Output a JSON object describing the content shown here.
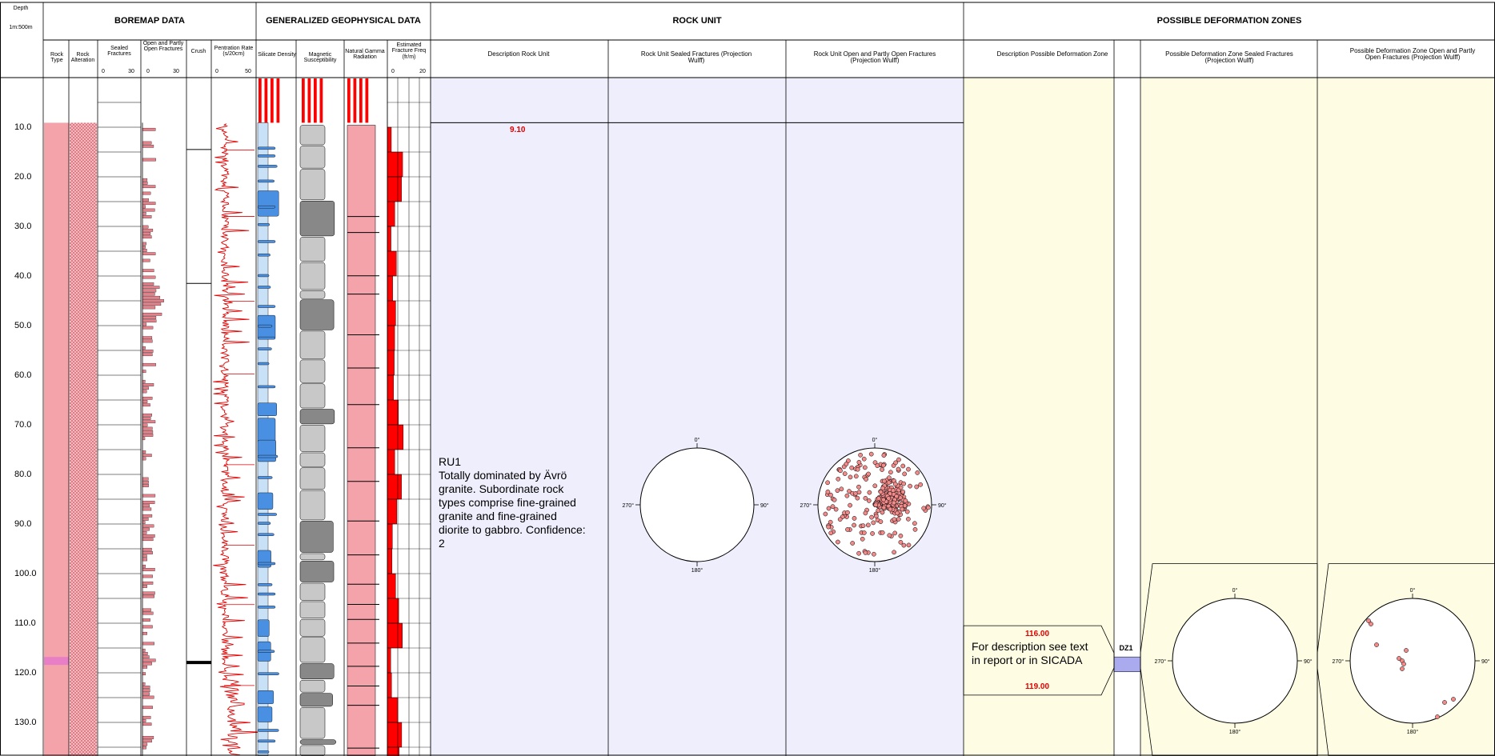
{
  "header": {
    "depth_label": "Depth",
    "scale_label": "1m:500m",
    "groups": {
      "boremap": "BOREMAP DATA",
      "geophysical": "GENERALIZED GEOPHYSICAL DATA",
      "rock_unit": "ROCK UNIT",
      "deformation": "POSSIBLE DEFORMATION ZONES"
    },
    "columns": {
      "rock_type": "Rock Type",
      "rock_alteration": "Rock Alteration",
      "sealed_fractures": "Sealed Fractures",
      "sealed_scale_min": "0",
      "sealed_scale_max": "30",
      "open_fractures": "Open and Partly Open Fractures",
      "open_scale_min": "0",
      "open_scale_max": "30",
      "crush": "Crush",
      "penetration": "Pentration Rate (s/20cm)",
      "pen_scale_min": "0",
      "pen_scale_max": "50",
      "silicate": "Silicate Density",
      "magnetic": "Magnetic Susceptibility",
      "gamma": "Natural Gamma Radiation",
      "fracture_freq": "Estimated Fracture Freq (fr/m)",
      "ff_scale_min": "0",
      "ff_scale_max": "20",
      "ru_description": "Description Rock Unit",
      "ru_sealed": "Rock Unit Sealed Fractures (Projection Wulff)",
      "ru_open": "Rock Unit Open and Partly Open Fractures (Projection Wulff)",
      "dz_description": "Description Possible Deformation Zone",
      "dz_sealed": "Possible Deformation Zone Sealed Fractures (Projection Wulff)",
      "dz_open": "Possible Deformation Zone Open and Partly Open Fractures (Projection Wulff)"
    }
  },
  "depth_ticks": [
    "10.0",
    "20.0",
    "30.0",
    "40.0",
    "50.0",
    "60.0",
    "70.0",
    "80.0",
    "90.0",
    "100.0",
    "110.0",
    "120.0",
    "130.0"
  ],
  "rock_unit": {
    "top": "9.10",
    "name": "RU1",
    "description": "Totally dominated by Ävrö granite. Subordinate rock types comprise fine-grained granite and fine-grained diorite to gabbro. Confidence: 2"
  },
  "deformation_zone": {
    "id": "DZ1",
    "top": "116.00",
    "bottom": "119.00",
    "description": "For description see text in report or in SICADA"
  },
  "stereonet": {
    "north": "0°",
    "east": "90°",
    "south": "180°",
    "west": "270°"
  },
  "colors": {
    "rock_fill": "#f4a3ab",
    "fracture_bar": "#e8808a",
    "penetration_line": "#e00000",
    "silicate_fill": "#c9e1f7",
    "silicate_bar": "#4a90e2",
    "magnetic_fill": "#c8c8c8",
    "gamma_fill": "#f4a3ab",
    "freq_fill": "#ff0000",
    "rock_unit_bg": "#eeeefc",
    "dz_bg": "#fefde4",
    "dz_marker": "#aaaaee",
    "pole_fill": "#f28a8a"
  }
}
